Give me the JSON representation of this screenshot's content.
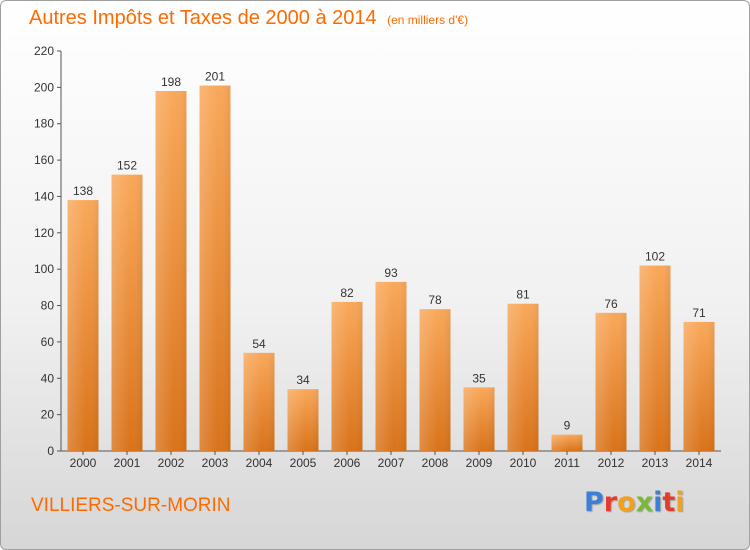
{
  "header": {
    "title": "Autres Impôts et Taxes de 2000 à 2014",
    "subtitle": "(en milliers d'€)"
  },
  "footer": {
    "commune": "VILLIERS-SUR-MORIN",
    "logo": "Proxiti"
  },
  "colors": {
    "accent": "#ff6a00",
    "bar_light": "#f9a85a",
    "bar_dark": "#d9731a"
  },
  "chart_data": {
    "type": "bar",
    "title": "Autres Impôts et Taxes de 2000 à 2014",
    "subtitle": "(en milliers d'€)",
    "categories": [
      "2000",
      "2001",
      "2002",
      "2003",
      "2004",
      "2005",
      "2006",
      "2007",
      "2008",
      "2009",
      "2010",
      "2011",
      "2012",
      "2013",
      "2014"
    ],
    "values": [
      138,
      152,
      198,
      201,
      54,
      34,
      82,
      93,
      78,
      35,
      81,
      9,
      76,
      102,
      71
    ],
    "ylim": [
      0,
      220
    ],
    "yticks": [
      0,
      20,
      40,
      60,
      80,
      100,
      120,
      140,
      160,
      180,
      200,
      220
    ],
    "grid": false,
    "data_labels": true
  }
}
